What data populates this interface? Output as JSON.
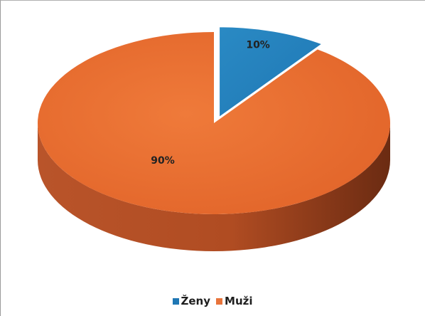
{
  "chart_data": {
    "type": "pie",
    "categories": [
      "Ženy",
      "Muži"
    ],
    "values": [
      10,
      90
    ],
    "labels": [
      "10%",
      "90%"
    ],
    "colors": [
      "#1f77b4",
      "#e8743b"
    ],
    "legend_position": "bottom",
    "title": ""
  }
}
